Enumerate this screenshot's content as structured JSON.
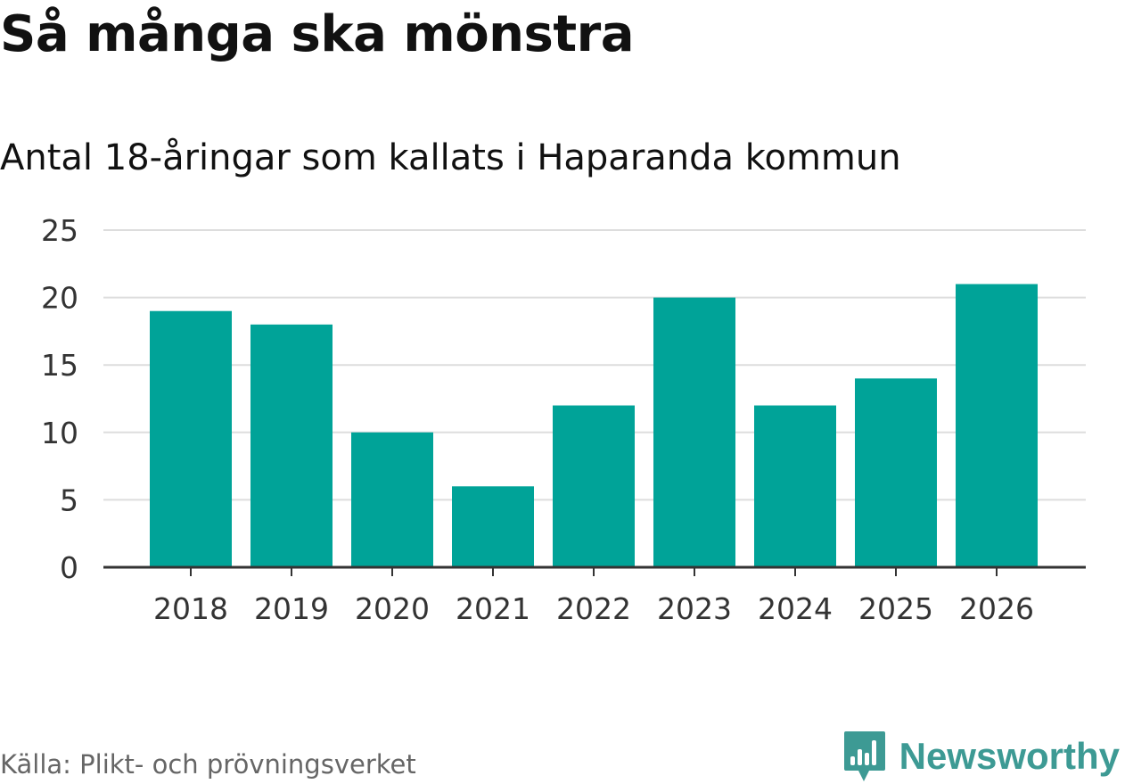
{
  "chart_data": {
    "type": "bar",
    "title": "Så många ska mönstra",
    "subtitle": "Antal 18-åringar som kallats i Haparanda kommun",
    "categories": [
      "2018",
      "2019",
      "2020",
      "2021",
      "2022",
      "2023",
      "2024",
      "2025",
      "2026"
    ],
    "values": [
      19,
      18,
      10,
      6,
      12,
      20,
      12,
      14,
      21
    ],
    "xlabel": "",
    "ylabel": "",
    "ylim": [
      0,
      25
    ],
    "yticks": [
      "0",
      "5",
      "10",
      "15",
      "20",
      "25"
    ],
    "grid": true,
    "bar_color": "#00a398"
  },
  "footer": {
    "source": "Källa: Plikt- och prövningsverket",
    "brand": "Newsworthy",
    "brand_color": "#3d9a94"
  }
}
